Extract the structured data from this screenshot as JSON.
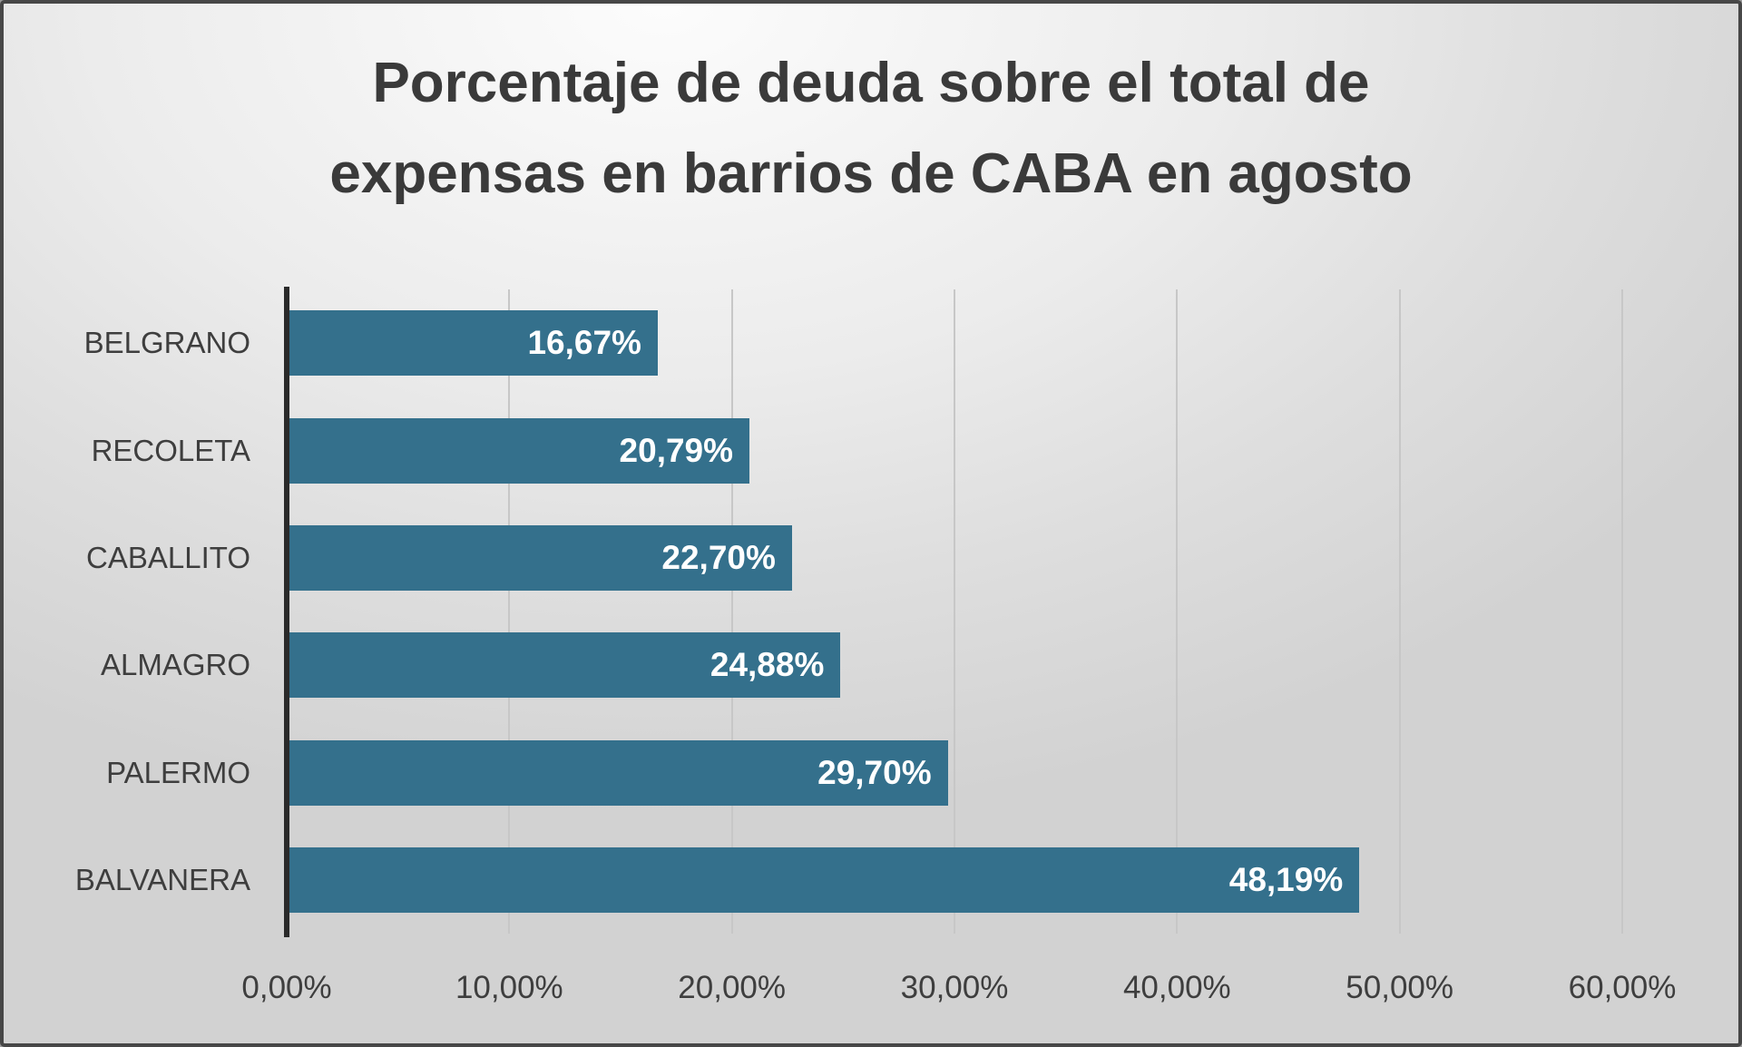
{
  "chart_data": {
    "type": "bar",
    "orientation": "horizontal",
    "title": "Porcentaje de deuda sobre el total de expensas en barrios de CABA en agosto",
    "title_lines": [
      "Porcentaje de deuda sobre el total de",
      "expensas en barrios de CABA en agosto"
    ],
    "categories": [
      "BELGRANO",
      "RECOLETA",
      "CABALLITO",
      "ALMAGRO",
      "PALERMO",
      "BALVANERA"
    ],
    "values": [
      16.67,
      20.79,
      22.7,
      24.88,
      29.7,
      48.19
    ],
    "value_labels": [
      "16,67%",
      "20,79%",
      "22,70%",
      "24,88%",
      "29,70%",
      "48,19%"
    ],
    "x_ticks_values": [
      0,
      10,
      20,
      30,
      40,
      50,
      60
    ],
    "x_tick_labels": [
      "0,00%",
      "10,00%",
      "20,00%",
      "30,00%",
      "40,00%",
      "50,00%",
      "60,00%"
    ],
    "xlim": [
      0,
      60
    ],
    "xlabel": "",
    "ylabel": "",
    "grid": true,
    "legend": false,
    "bar_color": "#34708C",
    "value_label_color": "#ffffff",
    "title_color": "#3a3a3a"
  }
}
